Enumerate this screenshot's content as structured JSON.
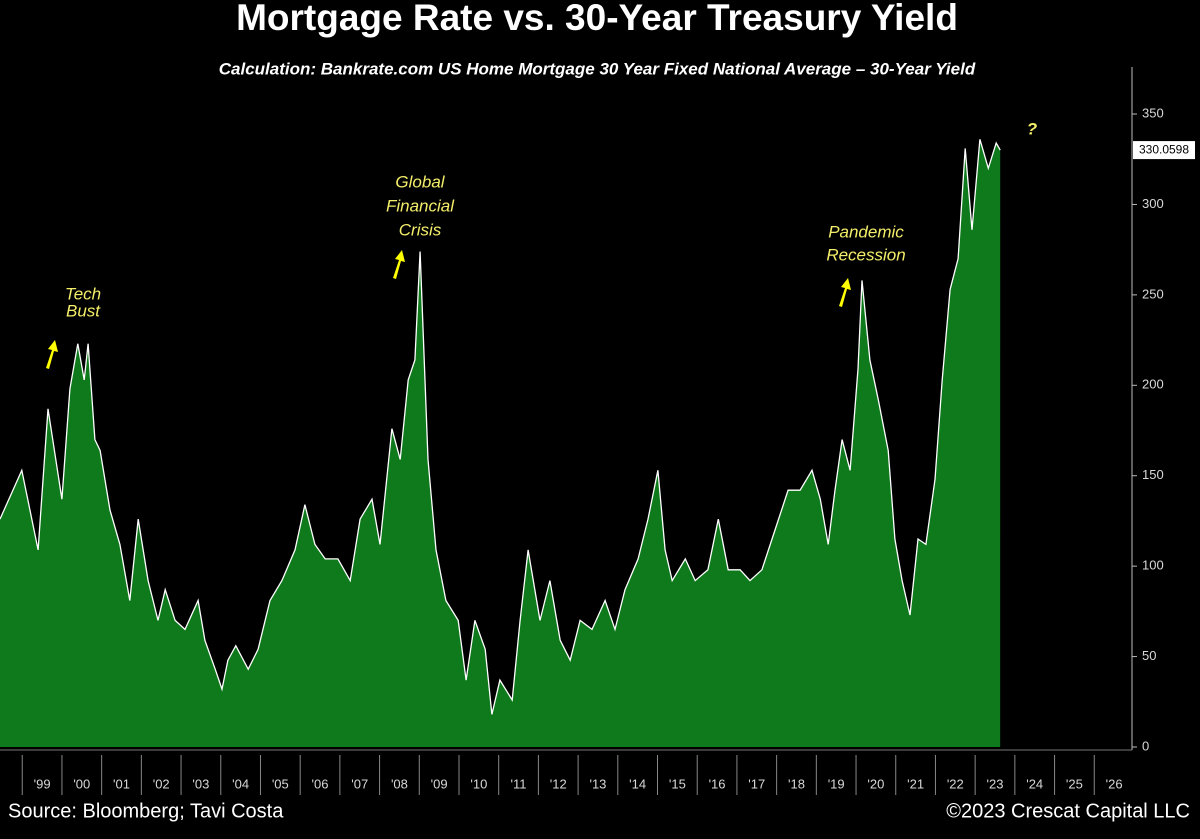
{
  "chart_data": {
    "type": "area",
    "title": "Mortgage Rate vs. 30-Year Treasury Yield",
    "subtitle": "Calculation: Bankrate.com US Home Mortgage 30 Year Fixed National Average – 30-Year Yield",
    "source": "Source: Bloomberg; Tavi Costa",
    "credit": "©2023 Crescat Capital LLC",
    "annotations": [
      {
        "lines": [
          "Tech",
          "Bust"
        ]
      },
      {
        "lines": [
          "Global",
          "Financial",
          "Crisis"
        ]
      },
      {
        "lines": [
          "Pandemic",
          "Recession"
        ]
      },
      {
        "lines": [
          "?"
        ]
      }
    ],
    "color": "#0e7a1c",
    "line_color": "#ffffff",
    "x": [
      1998.44,
      1998.99,
      1999.4,
      1999.65,
      2000.0,
      2000.2,
      2000.4,
      2000.56,
      2000.66,
      2000.83,
      2000.96,
      2001.21,
      2001.46,
      2001.71,
      2001.92,
      2002.17,
      2002.42,
      2002.6,
      2002.85,
      2003.1,
      2003.43,
      2003.6,
      2003.86,
      2004.03,
      2004.18,
      2004.38,
      2004.69,
      2004.94,
      2005.24,
      2005.54,
      2005.87,
      2006.12,
      2006.37,
      2006.63,
      2006.95,
      2007.26,
      2007.51,
      2007.81,
      2008.01,
      2008.31,
      2008.52,
      2008.72,
      2008.89,
      2009.02,
      2009.22,
      2009.42,
      2009.67,
      2009.98,
      2010.18,
      2010.4,
      2010.66,
      2010.83,
      2011.03,
      2011.34,
      2011.54,
      2011.74,
      2012.04,
      2012.29,
      2012.55,
      2012.8,
      2013.05,
      2013.35,
      2013.68,
      2013.93,
      2014.18,
      2014.51,
      2014.76,
      2015.01,
      2015.19,
      2015.37,
      2015.7,
      2015.95,
      2016.27,
      2016.53,
      2016.78,
      2017.08,
      2017.33,
      2017.63,
      2017.96,
      2018.29,
      2018.59,
      2018.89,
      2019.1,
      2019.3,
      2019.47,
      2019.65,
      2019.85,
      2020.05,
      2020.15,
      2020.35,
      2020.56,
      2020.81,
      2020.98,
      2021.16,
      2021.36,
      2021.56,
      2021.76,
      2021.99,
      2022.17,
      2022.37,
      2022.57,
      2022.75,
      2022.92,
      2023.12,
      2023.33,
      2023.53,
      2023.63
    ],
    "values": [
      126,
      153,
      109,
      187,
      137,
      198,
      223,
      203,
      223,
      170,
      164,
      131,
      112,
      81,
      126,
      92,
      70,
      87,
      70,
      65,
      81,
      59,
      43,
      32,
      48,
      56,
      43,
      54,
      81,
      92,
      109,
      134,
      112,
      104,
      104,
      92,
      126,
      137,
      112,
      176,
      159,
      203,
      214,
      274,
      159,
      109,
      81,
      70,
      37,
      70,
      54,
      18,
      37,
      26,
      70,
      109,
      70,
      92,
      59,
      48,
      70,
      65,
      81,
      65,
      87,
      104,
      126,
      153,
      109,
      92,
      104,
      92,
      98,
      126,
      98,
      98,
      92,
      98,
      120,
      142,
      142,
      153,
      137,
      112,
      142,
      170,
      153,
      209,
      258,
      214,
      192,
      164,
      115,
      92,
      73,
      115,
      112,
      148,
      203,
      253,
      270,
      331,
      286,
      336,
      320,
      334,
      330.0598
    ],
    "xlim": [
      1998.44,
      2026.9
    ],
    "xticks": [
      {
        "value": 1999,
        "label": "'99"
      },
      {
        "value": 2000,
        "label": "'00"
      },
      {
        "value": 2001,
        "label": "'01"
      },
      {
        "value": 2002,
        "label": "'02"
      },
      {
        "value": 2003,
        "label": "'03"
      },
      {
        "value": 2004,
        "label": "'04"
      },
      {
        "value": 2005,
        "label": "'05"
      },
      {
        "value": 2006,
        "label": "'06"
      },
      {
        "value": 2007,
        "label": "'07"
      },
      {
        "value": 2008,
        "label": "'08"
      },
      {
        "value": 2009,
        "label": "'09"
      },
      {
        "value": 2010,
        "label": "'10"
      },
      {
        "value": 2011,
        "label": "'11"
      },
      {
        "value": 2012,
        "label": "'12"
      },
      {
        "value": 2013,
        "label": "'13"
      },
      {
        "value": 2014,
        "label": "'14"
      },
      {
        "value": 2015,
        "label": "'15"
      },
      {
        "value": 2016,
        "label": "'16"
      },
      {
        "value": 2017,
        "label": "'17"
      },
      {
        "value": 2018,
        "label": "'18"
      },
      {
        "value": 2019,
        "label": "'19"
      },
      {
        "value": 2020,
        "label": "'20"
      },
      {
        "value": 2021,
        "label": "'21"
      },
      {
        "value": 2022,
        "label": "'22"
      },
      {
        "value": 2023,
        "label": "'23"
      },
      {
        "value": 2024,
        "label": "'24"
      },
      {
        "value": 2025,
        "label": "'25"
      },
      {
        "value": 2026,
        "label": "'26"
      }
    ],
    "ylim": [
      0,
      376
    ],
    "yticks": [
      0,
      50,
      100,
      150,
      200,
      250,
      300,
      350
    ]
  }
}
